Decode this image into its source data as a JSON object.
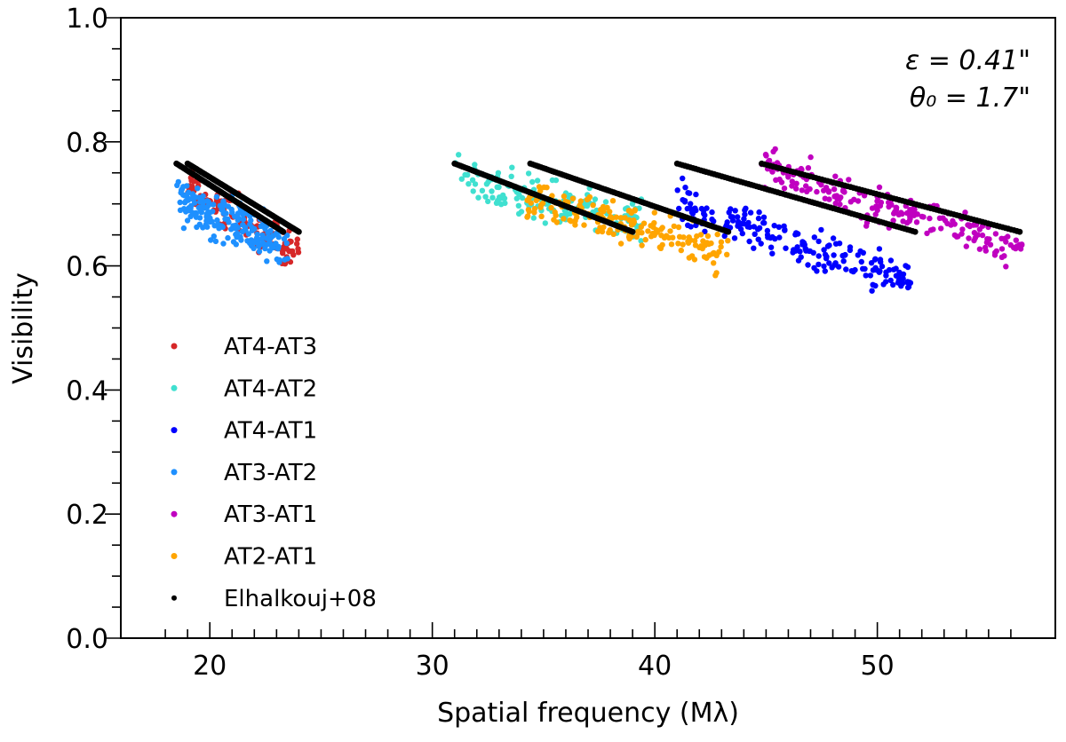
{
  "chart_data": {
    "type": "scatter",
    "title": "",
    "xlabel": "Spatial frequency (Mλ)",
    "ylabel": "Visibility",
    "xlim": [
      16,
      58
    ],
    "ylim": [
      0.0,
      1.0
    ],
    "xticks": [
      20,
      30,
      40,
      50
    ],
    "xtick_labels": [
      "20",
      "30",
      "40",
      "50"
    ],
    "yticks": [
      0.0,
      0.2,
      0.4,
      0.6,
      0.8,
      1.0
    ],
    "ytick_labels": [
      "0.0",
      "0.2",
      "0.4",
      "0.6",
      "0.8",
      "1.0"
    ],
    "grid": false,
    "legend_position": "lower-left",
    "annotations": [
      {
        "text": "ε = 0.41\"",
        "position": "top-right"
      },
      {
        "text": "θ₀ = 1.7\"",
        "position": "top-right"
      }
    ],
    "series": [
      {
        "name": "AT4-AT3",
        "color": "#d62728",
        "kind": "scatter",
        "x_range": [
          19.0,
          24.0
        ],
        "y_start": 0.73,
        "y_end": 0.62,
        "spread": 0.035,
        "count": 120
      },
      {
        "name": "AT4-AT2",
        "color": "#40e0d0",
        "kind": "scatter",
        "x_range": [
          31.0,
          39.5
        ],
        "y_start": 0.74,
        "y_end": 0.67,
        "spread": 0.035,
        "count": 160
      },
      {
        "name": "AT4-AT1",
        "color": "#0000ff",
        "kind": "scatter",
        "x_range": [
          41.0,
          51.7
        ],
        "y_start": 0.7,
        "y_end": 0.57,
        "spread": 0.035,
        "count": 200
      },
      {
        "name": "AT3-AT2",
        "color": "#1e90ff",
        "kind": "scatter",
        "x_range": [
          18.5,
          23.5
        ],
        "y_start": 0.71,
        "y_end": 0.63,
        "spread": 0.04,
        "count": 200
      },
      {
        "name": "AT3-AT1",
        "color": "#c000c0",
        "kind": "scatter",
        "x_range": [
          44.8,
          56.5
        ],
        "y_start": 0.76,
        "y_end": 0.62,
        "spread": 0.035,
        "count": 200
      },
      {
        "name": "AT2-AT1",
        "color": "#ffa500",
        "kind": "scatter",
        "x_range": [
          34.2,
          43.3
        ],
        "y_start": 0.71,
        "y_end": 0.62,
        "spread": 0.035,
        "count": 180
      }
    ],
    "model": {
      "name": "Elhalkouj+08",
      "color": "#000000",
      "segments": [
        {
          "x": [
            18.5,
            23.3
          ],
          "y": [
            0.765,
            0.655
          ]
        },
        {
          "x": [
            19.0,
            24.0
          ],
          "y": [
            0.765,
            0.655
          ]
        },
        {
          "x": [
            31.0,
            39.0
          ],
          "y": [
            0.765,
            0.655
          ]
        },
        {
          "x": [
            34.4,
            43.3
          ],
          "y": [
            0.765,
            0.655
          ]
        },
        {
          "x": [
            41.0,
            51.7
          ],
          "y": [
            0.765,
            0.655
          ]
        },
        {
          "x": [
            44.8,
            56.4
          ],
          "y": [
            0.765,
            0.655
          ]
        }
      ]
    }
  }
}
